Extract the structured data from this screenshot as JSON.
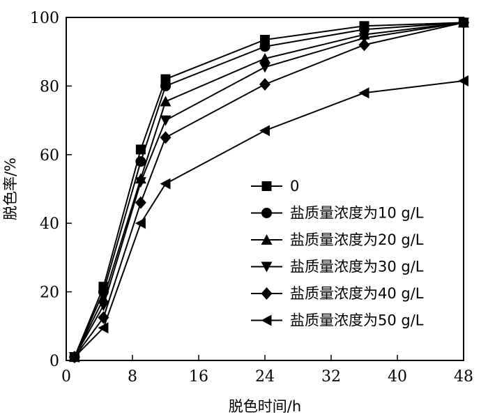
{
  "chart_data": {
    "type": "line",
    "xlabel": "脱色时间/h",
    "ylabel": "脱色率/%",
    "xlim": [
      0,
      48
    ],
    "ylim": [
      0,
      100
    ],
    "xticks": [
      0,
      8,
      16,
      24,
      32,
      40,
      48
    ],
    "yticks": [
      0,
      20,
      40,
      60,
      80,
      100
    ],
    "grid": false,
    "legend_position": "center-right",
    "x": [
      1,
      4.5,
      9,
      12,
      24,
      36,
      48
    ],
    "series": [
      {
        "name": "0",
        "marker": "square",
        "values": [
          1,
          21.5,
          61.5,
          82,
          93.5,
          97.5,
          98.5
        ]
      },
      {
        "name": "盐质量浓度为10 g/L",
        "marker": "circle",
        "values": [
          1,
          20,
          58,
          80,
          91.5,
          96.5,
          98.5
        ]
      },
      {
        "name": "盐质量浓度为20 g/L",
        "marker": "triangle-up",
        "values": [
          1,
          18,
          53,
          75.5,
          88,
          95,
          98.5
        ]
      },
      {
        "name": "盐质量浓度为30 g/L",
        "marker": "triangle-down",
        "values": [
          1,
          16,
          52,
          70,
          85.5,
          94,
          98.5
        ]
      },
      {
        "name": "盐质量浓度为40 g/L",
        "marker": "diamond",
        "values": [
          1,
          12.5,
          46,
          65,
          80.5,
          92,
          98.5
        ]
      },
      {
        "name": "盐质量浓度为50 g/L",
        "marker": "triangle-left",
        "values": [
          1,
          9.5,
          40,
          51.5,
          67,
          78,
          81.5
        ]
      }
    ]
  }
}
